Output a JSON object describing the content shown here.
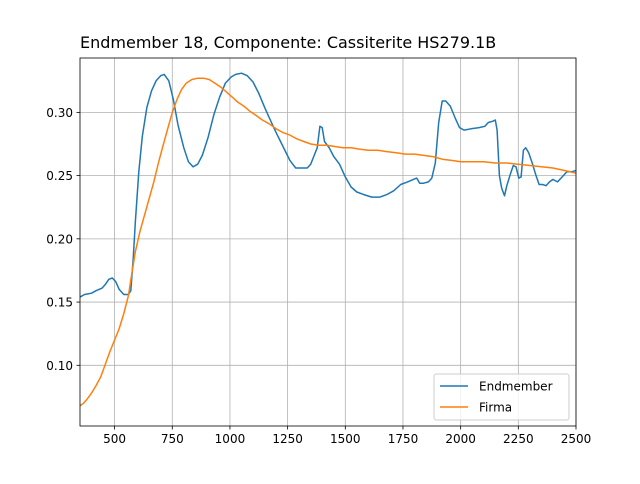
{
  "chart_data": {
    "type": "line",
    "title": "Endmember 18, Componente: Cassiterite HS279.1B",
    "xlabel": "",
    "ylabel": "",
    "xlim": [
      350,
      2500
    ],
    "ylim": [
      0.052,
      0.343
    ],
    "grid": true,
    "legend_position": "lower-right",
    "xticks": [
      500,
      750,
      1000,
      1250,
      1500,
      1750,
      2000,
      2250,
      2500
    ],
    "xtick_labels": [
      "500",
      "750",
      "1000",
      "1250",
      "1500",
      "1750",
      "2000",
      "2250",
      "2500"
    ],
    "yticks": [
      0.1,
      0.15,
      0.2,
      0.25,
      0.3
    ],
    "ytick_labels": [
      "0.10",
      "0.15",
      "0.20",
      "0.25",
      "0.30"
    ],
    "series": [
      {
        "name": "Endmember",
        "color": "#1f77b4",
        "points": [
          [
            350,
            0.154
          ],
          [
            370,
            0.156
          ],
          [
            400,
            0.157
          ],
          [
            420,
            0.159
          ],
          [
            445,
            0.161
          ],
          [
            460,
            0.164
          ],
          [
            475,
            0.168
          ],
          [
            490,
            0.169
          ],
          [
            505,
            0.166
          ],
          [
            520,
            0.16
          ],
          [
            540,
            0.156
          ],
          [
            560,
            0.156
          ],
          [
            570,
            0.159
          ],
          [
            580,
            0.183
          ],
          [
            590,
            0.214
          ],
          [
            605,
            0.253
          ],
          [
            620,
            0.281
          ],
          [
            640,
            0.304
          ],
          [
            660,
            0.317
          ],
          [
            680,
            0.325
          ],
          [
            700,
            0.329
          ],
          [
            715,
            0.33
          ],
          [
            735,
            0.325
          ],
          [
            755,
            0.31
          ],
          [
            775,
            0.29
          ],
          [
            800,
            0.272
          ],
          [
            820,
            0.261
          ],
          [
            840,
            0.257
          ],
          [
            860,
            0.259
          ],
          [
            880,
            0.266
          ],
          [
            905,
            0.28
          ],
          [
            930,
            0.298
          ],
          [
            955,
            0.312
          ],
          [
            980,
            0.323
          ],
          [
            1005,
            0.328
          ],
          [
            1025,
            0.33
          ],
          [
            1050,
            0.331
          ],
          [
            1075,
            0.329
          ],
          [
            1100,
            0.324
          ],
          [
            1125,
            0.315
          ],
          [
            1150,
            0.304
          ],
          [
            1175,
            0.294
          ],
          [
            1200,
            0.284
          ],
          [
            1230,
            0.273
          ],
          [
            1260,
            0.262
          ],
          [
            1285,
            0.256
          ],
          [
            1310,
            0.256
          ],
          [
            1335,
            0.256
          ],
          [
            1350,
            0.259
          ],
          [
            1365,
            0.266
          ],
          [
            1378,
            0.272
          ],
          [
            1390,
            0.289
          ],
          [
            1400,
            0.288
          ],
          [
            1410,
            0.277
          ],
          [
            1430,
            0.272
          ],
          [
            1450,
            0.265
          ],
          [
            1475,
            0.259
          ],
          [
            1500,
            0.249
          ],
          [
            1525,
            0.241
          ],
          [
            1550,
            0.237
          ],
          [
            1580,
            0.235
          ],
          [
            1615,
            0.233
          ],
          [
            1650,
            0.233
          ],
          [
            1680,
            0.235
          ],
          [
            1710,
            0.238
          ],
          [
            1740,
            0.243
          ],
          [
            1770,
            0.245
          ],
          [
            1795,
            0.247
          ],
          [
            1810,
            0.248
          ],
          [
            1822,
            0.244
          ],
          [
            1840,
            0.244
          ],
          [
            1860,
            0.245
          ],
          [
            1875,
            0.248
          ],
          [
            1890,
            0.26
          ],
          [
            1905,
            0.292
          ],
          [
            1920,
            0.309
          ],
          [
            1935,
            0.309
          ],
          [
            1955,
            0.305
          ],
          [
            1975,
            0.296
          ],
          [
            1995,
            0.288
          ],
          [
            2015,
            0.286
          ],
          [
            2045,
            0.287
          ],
          [
            2080,
            0.288
          ],
          [
            2105,
            0.289
          ],
          [
            2120,
            0.292
          ],
          [
            2140,
            0.293
          ],
          [
            2150,
            0.294
          ],
          [
            2158,
            0.286
          ],
          [
            2168,
            0.25
          ],
          [
            2178,
            0.24
          ],
          [
            2190,
            0.234
          ],
          [
            2200,
            0.242
          ],
          [
            2215,
            0.251
          ],
          [
            2228,
            0.258
          ],
          [
            2240,
            0.257
          ],
          [
            2252,
            0.248
          ],
          [
            2262,
            0.249
          ],
          [
            2272,
            0.27
          ],
          [
            2282,
            0.272
          ],
          [
            2295,
            0.268
          ],
          [
            2310,
            0.26
          ],
          [
            2325,
            0.251
          ],
          [
            2340,
            0.243
          ],
          [
            2355,
            0.243
          ],
          [
            2370,
            0.242
          ],
          [
            2385,
            0.245
          ],
          [
            2400,
            0.247
          ],
          [
            2420,
            0.245
          ],
          [
            2440,
            0.249
          ],
          [
            2460,
            0.253
          ],
          [
            2480,
            0.253
          ],
          [
            2500,
            0.254
          ]
        ]
      },
      {
        "name": "Firma",
        "color": "#ff7f0e",
        "points": [
          [
            350,
            0.068
          ],
          [
            365,
            0.07
          ],
          [
            380,
            0.073
          ],
          [
            400,
            0.078
          ],
          [
            420,
            0.084
          ],
          [
            440,
            0.091
          ],
          [
            460,
            0.101
          ],
          [
            480,
            0.111
          ],
          [
            500,
            0.12
          ],
          [
            520,
            0.129
          ],
          [
            540,
            0.141
          ],
          [
            560,
            0.155
          ],
          [
            575,
            0.173
          ],
          [
            590,
            0.19
          ],
          [
            610,
            0.206
          ],
          [
            630,
            0.219
          ],
          [
            650,
            0.232
          ],
          [
            670,
            0.245
          ],
          [
            690,
            0.26
          ],
          [
            710,
            0.274
          ],
          [
            730,
            0.287
          ],
          [
            750,
            0.3
          ],
          [
            770,
            0.31
          ],
          [
            790,
            0.318
          ],
          [
            810,
            0.323
          ],
          [
            835,
            0.326
          ],
          [
            860,
            0.327
          ],
          [
            885,
            0.327
          ],
          [
            910,
            0.326
          ],
          [
            935,
            0.323
          ],
          [
            960,
            0.32
          ],
          [
            985,
            0.316
          ],
          [
            1010,
            0.312
          ],
          [
            1035,
            0.308
          ],
          [
            1060,
            0.305
          ],
          [
            1085,
            0.301
          ],
          [
            1110,
            0.298
          ],
          [
            1140,
            0.294
          ],
          [
            1170,
            0.291
          ],
          [
            1200,
            0.287
          ],
          [
            1230,
            0.284
          ],
          [
            1260,
            0.282
          ],
          [
            1290,
            0.279
          ],
          [
            1320,
            0.277
          ],
          [
            1350,
            0.275
          ],
          [
            1385,
            0.274
          ],
          [
            1420,
            0.274
          ],
          [
            1455,
            0.273
          ],
          [
            1490,
            0.272
          ],
          [
            1525,
            0.272
          ],
          [
            1560,
            0.271
          ],
          [
            1600,
            0.27
          ],
          [
            1640,
            0.27
          ],
          [
            1680,
            0.269
          ],
          [
            1720,
            0.268
          ],
          [
            1760,
            0.267
          ],
          [
            1800,
            0.267
          ],
          [
            1840,
            0.266
          ],
          [
            1880,
            0.265
          ],
          [
            1920,
            0.263
          ],
          [
            1960,
            0.262
          ],
          [
            2000,
            0.261
          ],
          [
            2050,
            0.261
          ],
          [
            2100,
            0.261
          ],
          [
            2150,
            0.26
          ],
          [
            2200,
            0.26
          ],
          [
            2250,
            0.259
          ],
          [
            2300,
            0.258
          ],
          [
            2350,
            0.257
          ],
          [
            2400,
            0.256
          ],
          [
            2450,
            0.254
          ],
          [
            2475,
            0.253
          ],
          [
            2500,
            0.252
          ]
        ]
      }
    ]
  }
}
